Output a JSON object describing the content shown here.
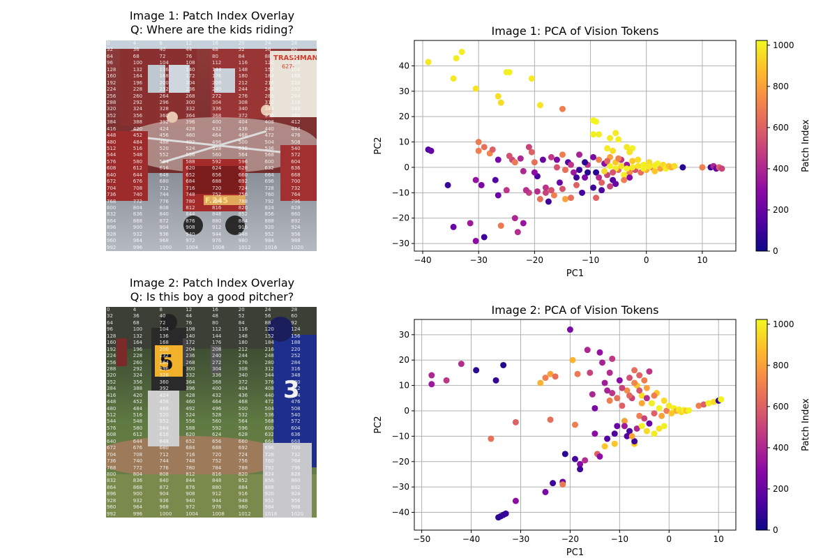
{
  "panels": {
    "img1_title": "Image 1: Patch Index Overlay",
    "img1_question": "Q: Where are the kids riding?",
    "img2_title": "Image 2: Patch Index Overlay",
    "img2_question": "Q: Is this boy a good pitcher?",
    "overlay_grid": {
      "columns": 8,
      "rows": 32,
      "step": 4,
      "max": 1020
    },
    "img1_sign_text": [
      "TRASHMAN",
      "627-"
    ],
    "img1_plate_text": "F.245",
    "img2_jersey_numbers": [
      "5",
      "3"
    ]
  },
  "colorbar": {
    "label": "Patch Index",
    "ticks": [
      0,
      200,
      400,
      600,
      800,
      1000
    ],
    "range": [
      0,
      1023
    ],
    "cmap": "plasma"
  },
  "chart_data": [
    {
      "type": "scatter",
      "title": "Image 1: PCA of Vision Tokens",
      "xlabel": "PC1",
      "ylabel": "PC2",
      "xlim": [
        -41.5,
        16
      ],
      "ylim": [
        -33,
        50
      ],
      "xticks": [
        -40,
        -30,
        -20,
        -10,
        0,
        10
      ],
      "yticks": [
        -30,
        -20,
        -10,
        0,
        10,
        20,
        30,
        40
      ],
      "grid": true,
      "colorbar_label": "Patch Index",
      "points": [
        [
          -39,
          41.5,
          980
        ],
        [
          -34,
          43,
          990
        ],
        [
          -33,
          45.5,
          995
        ],
        [
          -34.5,
          35,
          985
        ],
        [
          -30.5,
          31,
          970
        ],
        [
          -26.5,
          28,
          960
        ],
        [
          -26,
          25.5,
          955
        ],
        [
          -25,
          37.5,
          1000
        ],
        [
          -24.5,
          37.5,
          1005
        ],
        [
          -20.5,
          35,
          990
        ],
        [
          -19,
          24.5,
          975
        ],
        [
          -15,
          23,
          700
        ],
        [
          -9.5,
          18.5,
          1010
        ],
        [
          -9,
          18,
          1015
        ],
        [
          -9.5,
          13,
          1000
        ],
        [
          -8.5,
          13,
          995
        ],
        [
          -6.5,
          11.5,
          990
        ],
        [
          -5.5,
          13.5,
          985
        ],
        [
          -5,
          11,
          1000
        ],
        [
          -3.5,
          8,
          980
        ],
        [
          -2.5,
          7.5,
          1010
        ],
        [
          -3,
          6,
          970
        ],
        [
          -7,
          7.5,
          990
        ],
        [
          -6,
          6.5,
          960
        ],
        [
          -39,
          7,
          150
        ],
        [
          -38.5,
          6.5,
          180
        ],
        [
          -35.5,
          -7,
          90
        ],
        [
          -34.5,
          -23.5,
          200
        ],
        [
          -31.5,
          -22,
          350
        ],
        [
          -30.5,
          -29,
          300
        ],
        [
          -29,
          -27.5,
          100
        ],
        [
          -30.5,
          -5,
          320
        ],
        [
          -29.5,
          -7,
          250
        ],
        [
          -30,
          6.5,
          700
        ],
        [
          -30,
          10,
          690
        ],
        [
          -29,
          8,
          650
        ],
        [
          -28,
          5.5,
          720
        ],
        [
          -27.5,
          7,
          600
        ],
        [
          -26.5,
          3,
          240
        ],
        [
          -26.5,
          -11,
          200
        ],
        [
          -27,
          -5,
          150
        ],
        [
          -26,
          -23,
          680
        ],
        [
          -25,
          -9,
          450
        ],
        [
          -24,
          3,
          520
        ],
        [
          -23.5,
          -20,
          400
        ],
        [
          -23,
          -25.5,
          420
        ],
        [
          -22,
          -1.5,
          400
        ],
        [
          -22,
          -22,
          330
        ],
        [
          -21,
          8,
          500
        ],
        [
          -21,
          -10,
          480
        ],
        [
          -20.5,
          6,
          600
        ],
        [
          -20,
          2,
          650
        ],
        [
          -19.5,
          -3.5,
          120
        ],
        [
          -19,
          -12.5,
          650
        ],
        [
          -18,
          -10,
          500
        ],
        [
          -17.5,
          -13.5,
          100
        ],
        [
          -17,
          4,
          460
        ],
        [
          -16,
          0,
          550
        ],
        [
          -15.5,
          -6,
          200
        ],
        [
          -15,
          5,
          700
        ],
        [
          -14.5,
          -12.5,
          800
        ],
        [
          -13.5,
          -12,
          650
        ],
        [
          -14,
          2,
          150
        ],
        [
          -13,
          -2,
          350
        ],
        [
          -12.5,
          -7,
          600
        ],
        [
          -12,
          5,
          380
        ],
        [
          -11,
          -4,
          250
        ],
        [
          -10.5,
          1,
          450
        ],
        [
          -9.5,
          -8,
          100
        ],
        [
          -9,
          -2,
          50
        ],
        [
          -8.5,
          3,
          700
        ],
        [
          -8,
          -6,
          600
        ],
        [
          -7.5,
          1.5,
          300
        ],
        [
          -7,
          -3,
          500
        ],
        [
          -6.5,
          4,
          800
        ],
        [
          -6,
          -5,
          150
        ],
        [
          -5.5,
          2,
          900
        ],
        [
          -5,
          -1,
          650
        ],
        [
          -4.5,
          3,
          450
        ],
        [
          -4,
          -3,
          1000
        ],
        [
          -3.5,
          1,
          350
        ],
        [
          -3,
          -2,
          750
        ],
        [
          -2.5,
          2.5,
          900
        ],
        [
          -2,
          -1,
          550
        ],
        [
          -1.5,
          3,
          950
        ],
        [
          -1,
          -2,
          650
        ],
        [
          -0.5,
          1,
          1000
        ],
        [
          0,
          -1,
          850
        ],
        [
          0.5,
          2,
          950
        ],
        [
          1,
          0,
          700
        ],
        [
          1.5,
          -1.5,
          900
        ],
        [
          2,
          1.5,
          1010
        ],
        [
          2.5,
          -0.5,
          800
        ],
        [
          3,
          1,
          950
        ],
        [
          3.5,
          -0.5,
          1000
        ],
        [
          4,
          0.5,
          900
        ],
        [
          4.5,
          0,
          850
        ],
        [
          5,
          0.5,
          950
        ],
        [
          6.5,
          0,
          50
        ],
        [
          10,
          0,
          700
        ],
        [
          11.5,
          0,
          80
        ],
        [
          12,
          0.5,
          400
        ],
        [
          12.5,
          -0.5,
          200
        ],
        [
          13,
          0,
          600
        ],
        [
          13.5,
          -0.5,
          500
        ],
        [
          -9,
          -12,
          600
        ],
        [
          -11.5,
          -10,
          120
        ],
        [
          -12.5,
          -4,
          100
        ],
        [
          -16.5,
          -11,
          700
        ],
        [
          -18,
          -8,
          450
        ],
        [
          -8,
          -9,
          130
        ],
        [
          -6.5,
          -7.5,
          500
        ],
        [
          -5.5,
          -6.5,
          200
        ],
        [
          -4,
          -5,
          700
        ],
        [
          -3,
          -4,
          300
        ],
        [
          -7.5,
          -1.5,
          950
        ],
        [
          -6.5,
          0.5,
          1005
        ],
        [
          -5.5,
          -0.5,
          990
        ],
        [
          -4.5,
          0.5,
          960
        ],
        [
          -3.5,
          -0.5,
          1015
        ],
        [
          -2.5,
          0,
          990
        ],
        [
          -1.5,
          0.5,
          970
        ],
        [
          -0.5,
          -0.5,
          1000
        ],
        [
          0.5,
          0.3,
          985
        ],
        [
          1.5,
          0.7,
          995
        ],
        [
          -10.5,
          -2,
          50
        ],
        [
          -11,
          2,
          60
        ],
        [
          -12,
          -1,
          90
        ],
        [
          -13.5,
          1,
          450
        ],
        [
          -14.5,
          -1,
          650
        ],
        [
          -9.5,
          4,
          250
        ],
        [
          -8.5,
          -4,
          420
        ],
        [
          -7,
          2.5,
          620
        ],
        [
          -6,
          -2,
          560
        ],
        [
          -5,
          3.5,
          700
        ],
        [
          -23.5,
          2,
          680
        ],
        [
          -22.5,
          3.5,
          400
        ],
        [
          -20,
          -2,
          300
        ],
        [
          -18.5,
          3,
          200
        ],
        [
          -17,
          -9,
          550
        ],
        [
          -24.5,
          4.5,
          550
        ],
        [
          -21.5,
          -9,
          430
        ],
        [
          -19.5,
          -9.5,
          420
        ],
        [
          -16,
          3,
          260
        ],
        [
          -15,
          -8.5,
          560
        ]
      ]
    },
    {
      "type": "scatter",
      "title": "Image 2: PCA of Vision Tokens",
      "xlabel": "PC1",
      "ylabel": "PC2",
      "xlim": [
        -51.5,
        13.5
      ],
      "ylim": [
        -47,
        36
      ],
      "xticks": [
        -50,
        -40,
        -30,
        -20,
        -10,
        0,
        10
      ],
      "yticks": [
        -40,
        -30,
        -20,
        -10,
        0,
        10,
        20,
        30
      ],
      "grid": true,
      "colorbar_label": "Patch Index",
      "points": [
        [
          -48,
          10.5,
          350
        ],
        [
          -48,
          14,
          400
        ],
        [
          -45,
          12,
          450
        ],
        [
          -42,
          18.5,
          420
        ],
        [
          -39,
          16,
          60
        ],
        [
          -36,
          -11,
          650
        ],
        [
          -35,
          12,
          80
        ],
        [
          -33.5,
          18,
          50
        ],
        [
          -31,
          -4.5,
          600
        ],
        [
          -31,
          -35.5,
          300
        ],
        [
          -34.5,
          -42,
          60
        ],
        [
          -34,
          -41.5,
          70
        ],
        [
          -33.5,
          -41,
          80
        ],
        [
          -33,
          -40.5,
          90
        ],
        [
          -26,
          11,
          850
        ],
        [
          -25,
          13,
          700
        ],
        [
          -24,
          14.5,
          800
        ],
        [
          -23,
          13.5,
          650
        ],
        [
          -25,
          -32,
          250
        ],
        [
          -24,
          -3.5,
          650
        ],
        [
          -23.5,
          -28.5,
          100
        ],
        [
          -21.5,
          -28,
          200
        ],
        [
          -21.5,
          -29,
          680
        ],
        [
          -21,
          -17,
          60
        ],
        [
          -20,
          32,
          250
        ],
        [
          -19.5,
          20,
          850
        ],
        [
          -19,
          -5.5,
          700
        ],
        [
          -19,
          -19,
          120
        ],
        [
          -18.5,
          14.5,
          680
        ],
        [
          -18,
          -21,
          280
        ],
        [
          -18,
          -23,
          100
        ],
        [
          -17,
          -19.5,
          420
        ],
        [
          -16.5,
          24,
          400
        ],
        [
          -16,
          15,
          500
        ],
        [
          -15.5,
          6.5,
          400
        ],
        [
          -15,
          1,
          250
        ],
        [
          -15,
          -9,
          300
        ],
        [
          -14.5,
          -17,
          600
        ],
        [
          -14,
          -18,
          300
        ],
        [
          -14,
          23,
          320
        ],
        [
          -13.5,
          19,
          380
        ],
        [
          -13,
          11,
          360
        ],
        [
          -13,
          -14,
          900
        ],
        [
          -12.5,
          -11,
          150
        ],
        [
          -12,
          4,
          700
        ],
        [
          -12,
          15,
          420
        ],
        [
          -11.5,
          20.5,
          460
        ],
        [
          -11,
          -9,
          130
        ],
        [
          -10.5,
          -6,
          200
        ],
        [
          -10,
          12,
          300
        ],
        [
          -9.5,
          2,
          600
        ],
        [
          -9,
          -4,
          800
        ],
        [
          -8.5,
          8,
          750
        ],
        [
          -8,
          -8,
          130
        ],
        [
          -7.5,
          5,
          500
        ],
        [
          -7,
          -13,
          900
        ],
        [
          -7,
          -12,
          100
        ],
        [
          -6.5,
          10,
          900
        ],
        [
          -6,
          -2,
          700
        ],
        [
          -5.5,
          6,
          950
        ],
        [
          -5,
          -3,
          500
        ],
        [
          -4.5,
          9,
          800
        ],
        [
          -4,
          -5,
          200
        ],
        [
          -3.5,
          3,
          1000
        ],
        [
          -3,
          -1,
          600
        ],
        [
          -2.5,
          7,
          900
        ],
        [
          -2,
          1,
          1010
        ],
        [
          -1.5,
          -2,
          800
        ],
        [
          -1,
          4,
          950
        ],
        [
          -0.5,
          0,
          700
        ],
        [
          0,
          2,
          980
        ],
        [
          0.5,
          -1,
          900
        ],
        [
          1,
          1,
          1005
        ],
        [
          1.5,
          0,
          850
        ],
        [
          2,
          0.5,
          990
        ],
        [
          2.5,
          -0.5,
          950
        ],
        [
          3,
          0.3,
          1000
        ],
        [
          3.5,
          0,
          900
        ],
        [
          4,
          0.2,
          1010
        ],
        [
          6,
          2,
          700
        ],
        [
          7,
          2.5,
          600
        ],
        [
          8,
          3,
          1000
        ],
        [
          9,
          3.5,
          950
        ],
        [
          10,
          4,
          80
        ],
        [
          10.5,
          4.5,
          1010
        ],
        [
          -6,
          14,
          600
        ],
        [
          -5,
          12,
          700
        ],
        [
          -7,
          16,
          650
        ],
        [
          -4,
          15.5,
          450
        ],
        [
          -8,
          13,
          550
        ],
        [
          -9,
          -6,
          350
        ],
        [
          -8.5,
          -10,
          150
        ],
        [
          -6.5,
          -7,
          400
        ],
        [
          -5.5,
          -6,
          1000
        ],
        [
          -4.5,
          -8,
          950
        ],
        [
          -3,
          -9,
          990
        ],
        [
          -2,
          -7,
          970
        ],
        [
          -1,
          -6,
          1000
        ],
        [
          -7.5,
          -10,
          800
        ],
        [
          -11,
          -13,
          900
        ],
        [
          -9.5,
          9,
          500
        ],
        [
          -8,
          6,
          620
        ],
        [
          -6,
          8,
          560
        ],
        [
          -4.5,
          5,
          420
        ],
        [
          -3,
          6,
          700
        ],
        [
          -11.5,
          7,
          450
        ],
        [
          -10.5,
          5,
          650
        ],
        [
          -12.5,
          8,
          380
        ],
        [
          -7,
          11,
          720
        ],
        [
          -5.5,
          3,
          820
        ]
      ]
    }
  ]
}
